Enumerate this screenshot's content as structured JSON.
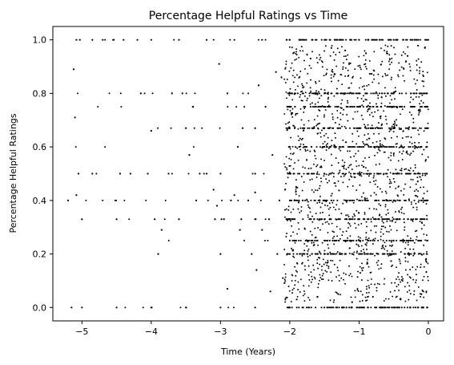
{
  "chart_data": {
    "type": "scatter",
    "title": "Percentage Helpful Ratings vs Time",
    "xlabel": "Time (Years)",
    "ylabel": "Percentage Helpful Ratings",
    "xlim": [
      -5.42,
      0.22
    ],
    "ylim": [
      -0.05,
      1.05
    ],
    "xticks": [
      -5,
      -4,
      -3,
      -2,
      -1,
      0
    ],
    "xtick_labels": [
      "−5",
      "−4",
      "−3",
      "−2",
      "−1",
      "0"
    ],
    "yticks": [
      0.0,
      0.2,
      0.4,
      0.6,
      0.8,
      1.0
    ],
    "ytick_labels": [
      "0.0",
      "0.2",
      "0.4",
      "0.6",
      "0.8",
      "1.0"
    ],
    "grid": false,
    "marker_color": "#000000",
    "series": [
      {
        "points": [
          [
            -5.15,
            0.0
          ],
          [
            -5.0,
            0.0
          ],
          [
            -4.5,
            0.0
          ],
          [
            -4.0,
            0.0
          ],
          [
            -3.5,
            0.0
          ],
          [
            -3.0,
            0.0
          ],
          [
            -2.5,
            0.0
          ],
          [
            -2.0,
            0.0
          ],
          [
            -1.5,
            0.0
          ],
          [
            -1.0,
            0.0
          ],
          [
            -0.5,
            0.0
          ],
          [
            -0.02,
            0.0
          ],
          [
            -5.08,
            1.0
          ],
          [
            -5.03,
            1.0
          ],
          [
            -4.85,
            1.0
          ],
          [
            -4.7,
            1.0
          ],
          [
            -4.55,
            1.0
          ],
          [
            -4.4,
            1.0
          ],
          [
            -4.2,
            1.0
          ],
          [
            -4.0,
            1.0
          ],
          [
            -3.6,
            1.0
          ],
          [
            -3.2,
            1.0
          ],
          [
            -2.8,
            1.0
          ],
          [
            -2.4,
            1.0
          ],
          [
            -2.0,
            1.0
          ],
          [
            -1.5,
            1.0
          ],
          [
            -1.0,
            1.0
          ],
          [
            -0.5,
            1.0
          ],
          [
            -0.02,
            1.0
          ],
          [
            -5.2,
            0.4
          ],
          [
            -5.12,
            0.89
          ],
          [
            -5.1,
            0.71
          ],
          [
            -5.08,
            0.42
          ],
          [
            -5.05,
            0.5
          ],
          [
            -5.0,
            0.33
          ],
          [
            -4.85,
            0.5
          ],
          [
            -4.5,
            0.33
          ],
          [
            -4.45,
            0.5
          ],
          [
            -4.3,
            0.5
          ],
          [
            -4.15,
            0.8
          ],
          [
            -4.05,
            0.5
          ],
          [
            -4.0,
            0.66
          ],
          [
            -3.9,
            0.2
          ],
          [
            -3.95,
            0.33
          ],
          [
            -3.85,
            0.29
          ],
          [
            -3.75,
            0.5
          ],
          [
            -3.7,
            0.8
          ],
          [
            -3.6,
            0.33
          ],
          [
            -3.55,
            0.8
          ],
          [
            -3.5,
            0.67
          ],
          [
            -3.45,
            0.57
          ],
          [
            -3.4,
            0.75
          ],
          [
            -3.35,
            0.4
          ],
          [
            -3.3,
            0.5
          ],
          [
            -3.2,
            0.5
          ],
          [
            -3.1,
            0.44
          ],
          [
            -3.05,
            0.38
          ],
          [
            -3.0,
            0.2
          ],
          [
            -2.95,
            0.33
          ],
          [
            -2.9,
            0.07
          ],
          [
            -3.08,
            0.33
          ],
          [
            -3.02,
            0.91
          ],
          [
            -2.9,
            0.8
          ],
          [
            -2.85,
            0.4
          ],
          [
            -2.8,
            0.42
          ],
          [
            -2.75,
            0.6
          ],
          [
            -2.72,
            0.29
          ],
          [
            -2.7,
            0.33
          ],
          [
            -2.68,
            0.67
          ],
          [
            -2.6,
            0.4
          ],
          [
            -2.55,
            0.2
          ],
          [
            -2.5,
            0.43
          ],
          [
            -2.48,
            0.14
          ],
          [
            -2.45,
            0.83
          ],
          [
            -2.4,
            0.29
          ],
          [
            -2.35,
            0.75
          ],
          [
            -2.3,
            0.33
          ],
          [
            -2.28,
            0.06
          ],
          [
            -2.25,
            0.57
          ],
          [
            -2.2,
            0.88
          ],
          [
            -2.18,
            0.2
          ],
          [
            -2.15,
            0.4
          ],
          [
            -2.12,
            0.86
          ],
          [
            -2.1,
            0.11
          ],
          [
            -2.0,
            0.2
          ],
          [
            -1.5,
            0.2
          ],
          [
            -1.0,
            0.2
          ],
          [
            -0.5,
            0.2
          ],
          [
            -0.02,
            0.2
          ],
          [
            -2.0,
            0.25
          ],
          [
            -1.5,
            0.25
          ],
          [
            -1.0,
            0.25
          ],
          [
            -0.5,
            0.25
          ],
          [
            -0.02,
            0.25
          ],
          [
            -2.5,
            0.33
          ],
          [
            -2.0,
            0.33
          ],
          [
            -1.5,
            0.33
          ],
          [
            -1.0,
            0.33
          ],
          [
            -0.5,
            0.33
          ],
          [
            -0.02,
            0.33
          ],
          [
            -2.0,
            0.4
          ],
          [
            -1.5,
            0.4
          ],
          [
            -1.0,
            0.4
          ],
          [
            -0.5,
            0.4
          ],
          [
            -0.02,
            0.4
          ],
          [
            -3.0,
            0.5
          ],
          [
            -2.5,
            0.5
          ],
          [
            -2.0,
            0.5
          ],
          [
            -1.5,
            0.5
          ],
          [
            -1.0,
            0.5
          ],
          [
            -0.5,
            0.5
          ],
          [
            -0.02,
            0.5
          ],
          [
            -2.0,
            0.6
          ],
          [
            -1.5,
            0.6
          ],
          [
            -1.0,
            0.6
          ],
          [
            -0.5,
            0.6
          ],
          [
            -0.02,
            0.6
          ],
          [
            -2.5,
            0.67
          ],
          [
            -2.0,
            0.67
          ],
          [
            -1.5,
            0.67
          ],
          [
            -1.0,
            0.67
          ],
          [
            -0.5,
            0.67
          ],
          [
            -0.02,
            0.67
          ],
          [
            -2.0,
            0.75
          ],
          [
            -1.5,
            0.75
          ],
          [
            -1.0,
            0.75
          ],
          [
            -0.5,
            0.75
          ],
          [
            -0.02,
            0.75
          ],
          [
            -2.0,
            0.8
          ],
          [
            -1.5,
            0.8
          ],
          [
            -1.0,
            0.8
          ],
          [
            -0.5,
            0.8
          ],
          [
            -0.02,
            0.8
          ],
          [
            -1.95,
            0.95
          ],
          [
            -1.7,
            0.93
          ],
          [
            -1.4,
            0.97
          ],
          [
            -1.2,
            0.96
          ],
          [
            -0.9,
            0.95
          ],
          [
            -0.6,
            0.95
          ],
          [
            -0.3,
            0.94
          ],
          [
            -0.05,
            0.97
          ],
          [
            -1.9,
            0.03
          ],
          [
            -1.6,
            0.04
          ],
          [
            -1.3,
            0.05
          ],
          [
            -1.1,
            0.02
          ],
          [
            -0.8,
            0.04
          ],
          [
            -0.4,
            0.03
          ],
          [
            -0.1,
            0.05
          ]
        ]
      }
    ]
  }
}
